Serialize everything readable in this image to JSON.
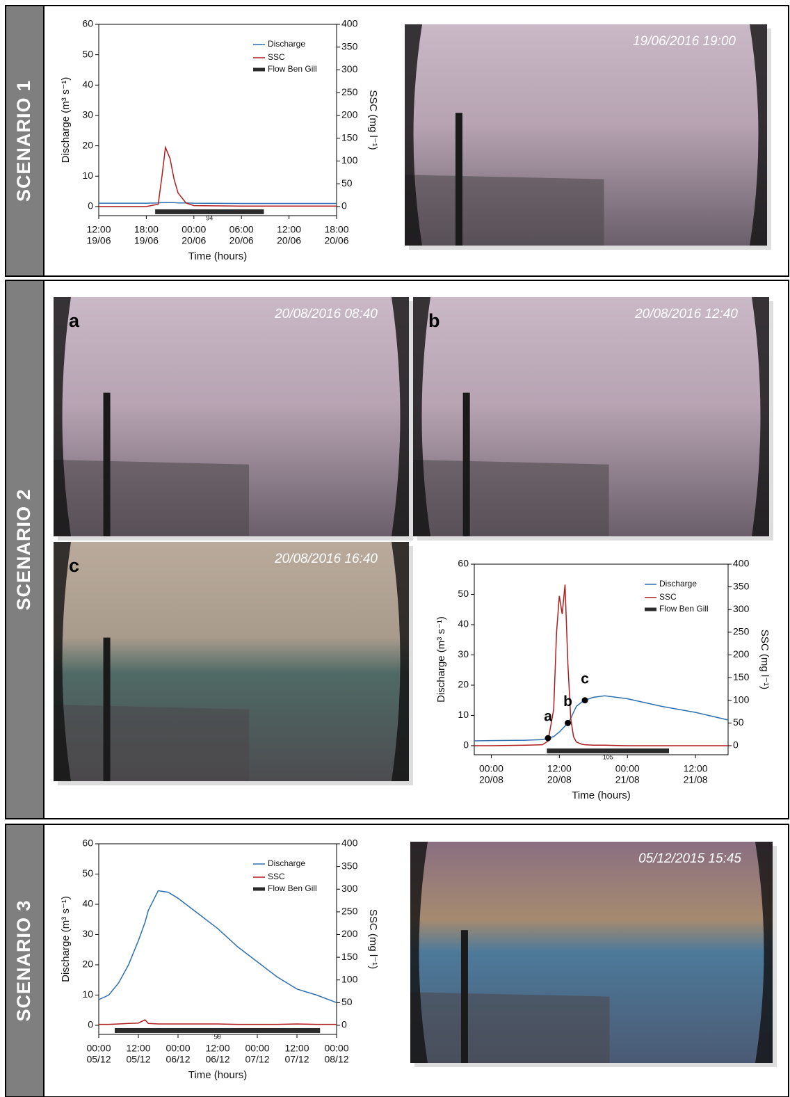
{
  "scenarios": [
    {
      "label": "SCENARIO 1",
      "photos": [
        {
          "timestamp": "19/06/2016 19:00"
        }
      ]
    },
    {
      "label": "SCENARIO 2",
      "photos": [
        {
          "letter": "a",
          "timestamp": "20/08/2016 08:40"
        },
        {
          "letter": "b",
          "timestamp": "20/08/2016 12:40"
        },
        {
          "letter": "c",
          "timestamp": "20/08/2016 16:40"
        }
      ]
    },
    {
      "label": "SCENARIO 3",
      "photos": [
        {
          "timestamp": "05/12/2015 15:45"
        }
      ]
    }
  ],
  "chart_data": [
    {
      "type": "line",
      "ylabel": "Discharge (m³ s⁻¹)",
      "y2label": "SSC (mg l⁻¹)",
      "xlabel": "Time (hours)",
      "x": [
        "19/06 12:00",
        "19/06 18:00",
        "19/06 19:30",
        "19/06 20:00",
        "19/06 20:25",
        "19/06 21:00",
        "19/06 21:30",
        "19/06 22:00",
        "19/06 23:00",
        "20/06 00:00",
        "20/06 06:00",
        "20/06 12:00",
        "20/06 18:00"
      ],
      "series": [
        {
          "name": "Discharge",
          "color": "#2e6fb0",
          "values": [
            1.1,
            1.1,
            1.2,
            1.3,
            1.3,
            1.3,
            1.3,
            1.2,
            1.2,
            1.1,
            1.0,
            1.0,
            1.0
          ]
        },
        {
          "name": "SSC",
          "color": "#b01c1c",
          "axis": "y2",
          "values": [
            0,
            0,
            5,
            70,
            130,
            105,
            60,
            30,
            8,
            2,
            1,
            1,
            1
          ]
        }
      ],
      "flow": {
        "name": "Flow Ben Gill",
        "start": "19/06 19:07",
        "end": "20/06 08:50",
        "value": 94
      },
      "xlim": [
        "19/06 12:00",
        "20/06 18:00"
      ],
      "xticks": [
        {
          "value": "19/06 12:00",
          "label": [
            "12:00",
            "19/06"
          ]
        },
        {
          "value": "19/06 18:00",
          "label": [
            "18:00",
            "19/06"
          ]
        },
        {
          "value": "20/06 00:00",
          "label": [
            "00:00",
            "20/06"
          ]
        },
        {
          "value": "20/06 06:00",
          "label": [
            "06:00",
            "20/06"
          ]
        },
        {
          "value": "20/06 12:00",
          "label": [
            "12:00",
            "20/06"
          ]
        },
        {
          "value": "20/06 18:00",
          "label": [
            "18:00",
            "20/06"
          ]
        }
      ],
      "ylim": [
        -3,
        60
      ],
      "yticks": [
        0,
        10,
        20,
        30,
        40,
        50,
        60
      ],
      "y2lim": [
        -20,
        400
      ],
      "y2ticks": [
        0,
        50,
        100,
        150,
        200,
        250,
        300,
        350,
        400
      ],
      "legend": "upper right"
    },
    {
      "type": "line",
      "ylabel": "Discharge (m³ s⁻¹)",
      "y2label": "SSC (mg l⁻¹)",
      "xlabel": "Time (hours)",
      "x": [
        "19/08 21:00",
        "20/08 00:00",
        "20/08 06:00",
        "20/08 09:00",
        "20/08 10:00",
        "20/08 11:00",
        "20/08 11:30",
        "20/08 12:00",
        "20/08 12:30",
        "20/08 13:00",
        "20/08 13:30",
        "20/08 14:00",
        "20/08 14:30",
        "20/08 15:00",
        "20/08 16:00",
        "20/08 16:30",
        "20/08 18:00",
        "20/08 20:00",
        "21/08 00:00",
        "21/08 06:00",
        "21/08 12:00",
        "21/08 17:45"
      ],
      "series": [
        {
          "name": "Discharge",
          "color": "#2e6fb0",
          "values": [
            1.6,
            1.7,
            1.8,
            2.0,
            2.5,
            3.0,
            3.8,
            4.5,
            5.5,
            6.5,
            7.5,
            9,
            11,
            13,
            14.5,
            15,
            16,
            16.5,
            15.5,
            13,
            11,
            8.5
          ]
        },
        {
          "name": "SSC",
          "color": "#b01c1c",
          "axis": "y2",
          "values": [
            0,
            0,
            1,
            2,
            10,
            80,
            250,
            330,
            290,
            355,
            180,
            60,
            20,
            8,
            3,
            2,
            1,
            1,
            0,
            0,
            0,
            0
          ]
        }
      ],
      "flow": {
        "name": "Flow Ben Gill",
        "start": "20/08 09:48",
        "end": "21/08 07:20",
        "value": 105
      },
      "annotations": [
        {
          "text": "a",
          "x": "20/08 10:00",
          "y": 2.5
        },
        {
          "text": "b",
          "x": "20/08 13:30",
          "y": 7.5
        },
        {
          "text": "c",
          "x": "20/08 16:30",
          "y": 15
        }
      ],
      "xlim": [
        "19/08 21:00",
        "21/08 17:45"
      ],
      "xticks": [
        {
          "value": "20/08 00:00",
          "label": [
            "00:00",
            "20/08"
          ]
        },
        {
          "value": "20/08 12:00",
          "label": [
            "12:00",
            "20/08"
          ]
        },
        {
          "value": "21/08 00:00",
          "label": [
            "00:00",
            "21/08"
          ]
        },
        {
          "value": "21/08 12:00",
          "label": [
            "12:00",
            "21/08"
          ]
        }
      ],
      "ylim": [
        -3,
        60
      ],
      "yticks": [
        0,
        10,
        20,
        30,
        40,
        50,
        60
      ],
      "y2lim": [
        -20,
        400
      ],
      "y2ticks": [
        0,
        50,
        100,
        150,
        200,
        250,
        300,
        350,
        400
      ],
      "legend": "upper right"
    },
    {
      "type": "line",
      "ylabel": "Discharge (m³ s⁻¹)",
      "y2label": "SSC (mg l⁻¹)",
      "xlabel": "Time (hours)",
      "x": [
        "05/12 00:00",
        "05/12 03:00",
        "05/12 06:00",
        "05/12 09:00",
        "05/12 12:00",
        "05/12 14:00",
        "05/12 15:00",
        "05/12 18:00",
        "05/12 21:00",
        "06/12 00:00",
        "06/12 06:00",
        "06/12 12:00",
        "06/12 18:00",
        "07/12 00:00",
        "07/12 06:00",
        "07/12 12:00",
        "07/12 18:00",
        "08/12 00:00"
      ],
      "series": [
        {
          "name": "Discharge",
          "color": "#2e6fb0",
          "values": [
            8.5,
            10,
            14,
            20,
            28,
            34,
            38,
            44.5,
            44,
            42,
            37,
            32,
            26,
            21,
            16,
            12,
            10,
            7.5
          ]
        },
        {
          "name": "SSC",
          "color": "#b01c1c",
          "axis": "y2",
          "values": [
            2,
            2,
            3,
            4,
            5,
            12,
            4,
            3,
            3,
            3,
            3,
            3,
            2,
            2,
            2,
            3,
            2,
            2
          ]
        }
      ],
      "flow": {
        "name": "Flow Ben Gill",
        "start": "05/12 04:50",
        "end": "07/12 19:00",
        "value": 59
      },
      "xlim": [
        "05/12 00:00",
        "08/12 00:00"
      ],
      "xticks": [
        {
          "value": "05/12 00:00",
          "label": [
            "00:00",
            "05/12"
          ]
        },
        {
          "value": "05/12 12:00",
          "label": [
            "12:00",
            "05/12"
          ]
        },
        {
          "value": "06/12 00:00",
          "label": [
            "00:00",
            "06/12"
          ]
        },
        {
          "value": "06/12 12:00",
          "label": [
            "12:00",
            "06/12"
          ]
        },
        {
          "value": "07/12 00:00",
          "label": [
            "00:00",
            "07/12"
          ]
        },
        {
          "value": "07/12 12:00",
          "label": [
            "12:00",
            "07/12"
          ]
        },
        {
          "value": "08/12 00:00",
          "label": [
            "00:00",
            "08/12"
          ]
        }
      ],
      "ylim": [
        -3,
        60
      ],
      "yticks": [
        0,
        10,
        20,
        30,
        40,
        50,
        60
      ],
      "y2lim": [
        -20,
        400
      ],
      "y2ticks": [
        0,
        50,
        100,
        150,
        200,
        250,
        300,
        350,
        400
      ],
      "legend": "upper right"
    }
  ]
}
